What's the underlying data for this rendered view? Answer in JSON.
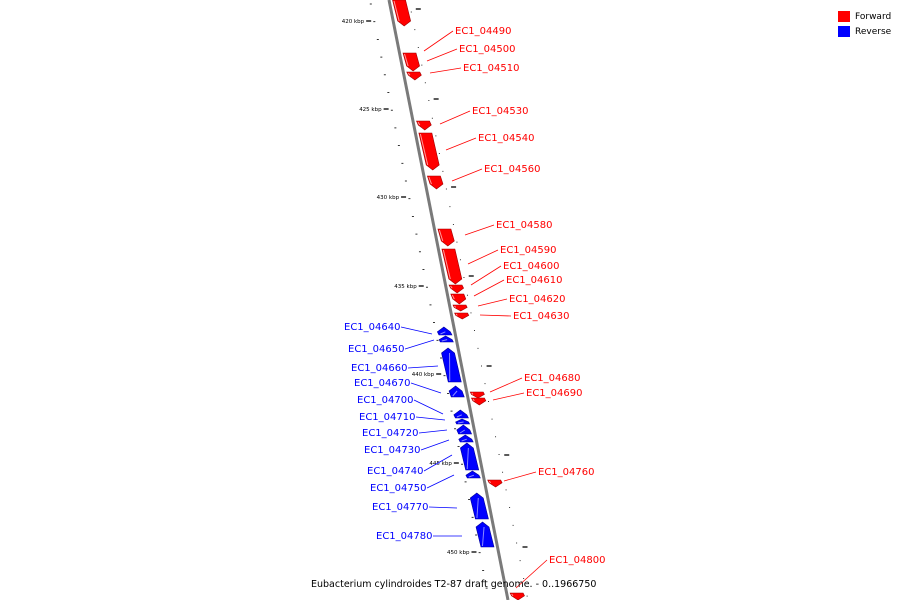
{
  "title": "Eubacterium cylindroides T2-87 draft genome. - 0..1966750",
  "legend": [
    {
      "label": "Forward",
      "color": "#ff0000"
    },
    {
      "label": "Reverse",
      "color": "#0000ff"
    }
  ],
  "ticks": [
    "420 kbp",
    "425 kbp",
    "430 kbp",
    "435 kbp",
    "440 kbp",
    "445 kbp",
    "450 kbp"
  ],
  "genes": [
    {
      "id": "EC1_04490",
      "strand": "forward"
    },
    {
      "id": "EC1_04500",
      "strand": "forward"
    },
    {
      "id": "EC1_04510",
      "strand": "forward"
    },
    {
      "id": "EC1_04530",
      "strand": "forward"
    },
    {
      "id": "EC1_04540",
      "strand": "forward"
    },
    {
      "id": "EC1_04560",
      "strand": "forward"
    },
    {
      "id": "EC1_04580",
      "strand": "forward"
    },
    {
      "id": "EC1_04590",
      "strand": "forward"
    },
    {
      "id": "EC1_04600",
      "strand": "forward"
    },
    {
      "id": "EC1_04610",
      "strand": "forward"
    },
    {
      "id": "EC1_04620",
      "strand": "forward"
    },
    {
      "id": "EC1_04630",
      "strand": "forward"
    },
    {
      "id": "EC1_04640",
      "strand": "reverse"
    },
    {
      "id": "EC1_04650",
      "strand": "reverse"
    },
    {
      "id": "EC1_04660",
      "strand": "reverse"
    },
    {
      "id": "EC1_04670",
      "strand": "reverse"
    },
    {
      "id": "EC1_04680",
      "strand": "forward"
    },
    {
      "id": "EC1_04690",
      "strand": "forward"
    },
    {
      "id": "EC1_04700",
      "strand": "reverse"
    },
    {
      "id": "EC1_04710",
      "strand": "reverse"
    },
    {
      "id": "EC1_04720",
      "strand": "reverse"
    },
    {
      "id": "EC1_04730",
      "strand": "reverse"
    },
    {
      "id": "EC1_04740",
      "strand": "reverse"
    },
    {
      "id": "EC1_04750",
      "strand": "reverse"
    },
    {
      "id": "EC1_04760",
      "strand": "forward"
    },
    {
      "id": "EC1_04770",
      "strand": "reverse"
    },
    {
      "id": "EC1_04780",
      "strand": "reverse"
    },
    {
      "id": "EC1_04800",
      "strand": "forward"
    }
  ]
}
